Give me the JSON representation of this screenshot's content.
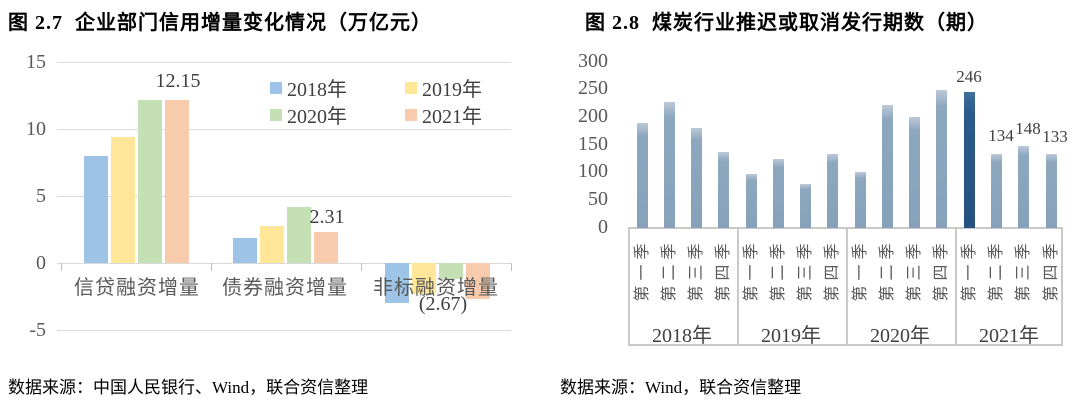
{
  "chart_data": [
    {
      "id": "figure-2-7",
      "type": "bar",
      "title": "图 2.7  企业部门信用增量变化情况（万亿元）",
      "unit": "万亿元",
      "categories": [
        "信贷融资增量",
        "债券融资增量",
        "非标融资增量"
      ],
      "series": [
        {
          "name": "2018年",
          "color": "#9DC3E6",
          "values": [
            8.0,
            1.9,
            -2.95
          ]
        },
        {
          "name": "2019年",
          "color": "#FFE699",
          "values": [
            9.4,
            2.75,
            -2.3
          ]
        },
        {
          "name": "2020年",
          "color": "#C5E0B4",
          "values": [
            12.2,
            4.2,
            -1.2
          ]
        },
        {
          "name": "2021年",
          "color": "#F8CBAD",
          "values": [
            12.15,
            2.31,
            -2.67
          ]
        }
      ],
      "point_labels": [
        "12.15",
        "2.31",
        "(2.67)"
      ],
      "y_ticks": [
        15,
        10,
        5,
        0,
        -5
      ],
      "ylim": [
        -5,
        15
      ],
      "gridlines": true,
      "legend_position": "top-right",
      "source": "数据来源：中国人民银行、Wind，联合资信整理"
    },
    {
      "id": "figure-2-8",
      "type": "bar",
      "title": "图 2.8  煤炭行业推迟或取消发行期数（期）",
      "unit": "期",
      "group_labels": [
        "2018年",
        "2019年",
        "2020年",
        "2021年"
      ],
      "quarter_labels": [
        "第一季",
        "第二季",
        "第三季",
        "第四季"
      ],
      "series": [
        {
          "name": "2018年",
          "values": [
            190,
            228,
            180,
            137
          ]
        },
        {
          "name": "2019年",
          "values": [
            97,
            125,
            80,
            133
          ]
        },
        {
          "name": "2020年",
          "values": [
            102,
            222,
            200,
            250
          ]
        },
        {
          "name": "2021年",
          "values": [
            246,
            134,
            148,
            133
          ]
        }
      ],
      "point_labels": [
        "246",
        "134",
        "148",
        "133"
      ],
      "highlight": {
        "year": "2021年",
        "quarter": "第一季",
        "value": 246,
        "color": "#2B5A8C"
      },
      "bar_color_light": "#8DA7BF",
      "y_ticks": [
        300,
        250,
        200,
        150,
        100,
        50,
        0
      ],
      "ylim": [
        0,
        300
      ],
      "gridlines": false,
      "source": "数据来源：Wind，联合资信整理"
    }
  ]
}
